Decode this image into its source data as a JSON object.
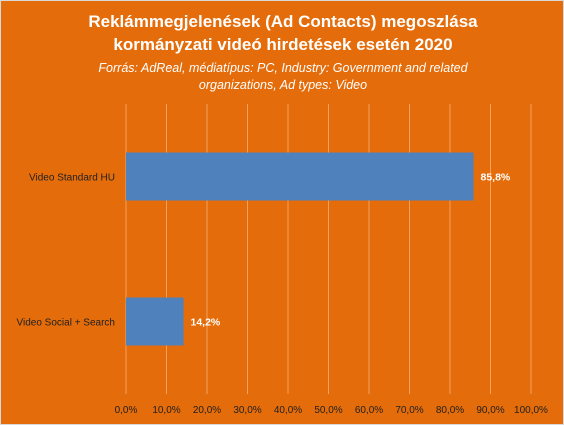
{
  "chart_data": {
    "type": "bar",
    "orientation": "horizontal",
    "title": "Reklámmegjelenések (Ad Contacts) megoszlása kormányzati videó hirdetések esetén 2020",
    "title_lines": [
      "Reklámmegjelenések (Ad Contacts) megoszlása",
      "kormányzati videó hirdetések esetén 2020"
    ],
    "subtitle": "Forrás: AdReal, médiatípus: PC, Industry: Government and related organizations, Ad types: Video",
    "subtitle_lines": [
      "Forrás: AdReal, médiatípus: PC, Industry: Government and related",
      "organizations, Ad types: Video"
    ],
    "categories": [
      "Video Standard HU",
      "Video Social + Search"
    ],
    "values": [
      85.8,
      14.2
    ],
    "data_labels": [
      "85,8%",
      "14,2%"
    ],
    "xlim": [
      0,
      100
    ],
    "x_ticks": [
      0,
      10,
      20,
      30,
      40,
      50,
      60,
      70,
      80,
      90,
      100
    ],
    "x_tick_labels": [
      "0,0%",
      "10,0%",
      "20,0%",
      "30,0%",
      "40,0%",
      "50,0%",
      "60,0%",
      "70,0%",
      "80,0%",
      "90,0%",
      "100,0%"
    ],
    "grid": "vertical",
    "legend": "none",
    "colors": {
      "background": "#E46C0A",
      "bar": "#4F81BD",
      "gridline": "#F2A15F",
      "text": "#ffffff",
      "axis_text": "#1f1f1f"
    }
  }
}
